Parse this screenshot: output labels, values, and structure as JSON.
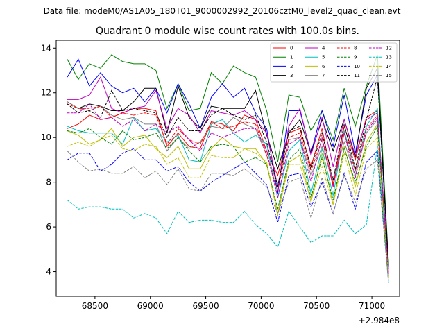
{
  "header": "Data file: modeM0/AS1A05_180T01_9000002992_20106cztM0_level2_quad_clean.evt",
  "chart_data": {
    "type": "line",
    "title": "Quadrant 0 module wise count rates with 100.0s bins.",
    "xlabel": "",
    "ylabel": "",
    "x_offset_label": "+2.984e8",
    "xlim": [
      68150,
      71250
    ],
    "ylim": [
      2.9,
      14.35
    ],
    "xticks": [
      68500,
      69000,
      69500,
      70000,
      70500,
      71000
    ],
    "yticks": [
      4,
      6,
      8,
      10,
      12,
      14
    ],
    "grid": false,
    "legend": {
      "placement": "top-right",
      "columns": 4
    },
    "x": [
      68250,
      68350,
      68450,
      68550,
      68650,
      68750,
      68850,
      68950,
      69050,
      69150,
      69250,
      69350,
      69450,
      69550,
      69650,
      69750,
      69850,
      69950,
      70050,
      70150,
      70250,
      70350,
      70450,
      70550,
      70650,
      70750,
      70850,
      70950,
      71050,
      71150
    ],
    "series": [
      {
        "name": "0",
        "color": "#ff0000",
        "dash": "solid",
        "values": [
          10.4,
          10.6,
          11.0,
          10.8,
          10.9,
          11.1,
          11.3,
          11.3,
          11.2,
          9.6,
          10.2,
          9.6,
          9.5,
          10.7,
          10.6,
          10.3,
          11.0,
          10.8,
          9.4,
          8.3,
          10.2,
          10.4,
          8.7,
          10.4,
          7.9,
          10.5,
          9.0,
          10.9,
          11.2,
          3.9
        ]
      },
      {
        "name": "1",
        "color": "#008000",
        "dash": "solid",
        "values": [
          13.5,
          12.6,
          13.3,
          13.1,
          13.7,
          13.4,
          13.3,
          13.3,
          13.0,
          11.3,
          12.4,
          11.2,
          11.3,
          12.9,
          12.4,
          13.2,
          12.9,
          12.7,
          11.2,
          8.9,
          11.9,
          11.8,
          10.3,
          11.2,
          9.9,
          12.2,
          10.5,
          12.3,
          13.7,
          4.4
        ]
      },
      {
        "name": "2",
        "color": "#0000ff",
        "dash": "solid",
        "values": [
          12.7,
          13.5,
          12.3,
          12.9,
          12.3,
          12.0,
          12.2,
          11.6,
          12.2,
          11.1,
          12.4,
          11.5,
          10.4,
          11.8,
          12.4,
          11.8,
          12.2,
          11.1,
          10.4,
          7.5,
          11.2,
          11.2,
          9.3,
          11.2,
          9.6,
          11.9,
          9.3,
          11.9,
          12.8,
          4.2
        ]
      },
      {
        "name": "3",
        "color": "#000000",
        "dash": "solid",
        "values": [
          11.6,
          11.3,
          11.5,
          11.4,
          11.2,
          11.2,
          11.6,
          12.2,
          12.2,
          10.2,
          12.3,
          10.9,
          10.4,
          11.4,
          11.3,
          11.3,
          11.3,
          12.1,
          10.1,
          8.6,
          10.2,
          10.8,
          9.3,
          10.8,
          9.4,
          10.8,
          9.1,
          12.2,
          13.1,
          4.3
        ]
      },
      {
        "name": "4",
        "color": "#c000c0",
        "dash": "solid",
        "values": [
          11.7,
          11.7,
          11.9,
          12.7,
          11.3,
          11.1,
          11.3,
          11.4,
          12.1,
          10.4,
          11.3,
          11.0,
          10.2,
          11.2,
          11.1,
          11.0,
          11.2,
          10.8,
          10.2,
          7.8,
          10.5,
          11.3,
          9.2,
          10.9,
          8.7,
          10.8,
          9.2,
          10.8,
          11.1,
          4.1
        ]
      },
      {
        "name": "5",
        "color": "#00bfbf",
        "dash": "solid",
        "values": [
          10.5,
          10.3,
          10.2,
          10.2,
          10.2,
          9.7,
          10.9,
          10.3,
          10.4,
          9.8,
          10.1,
          9.0,
          8.9,
          10.6,
          10.8,
          10.2,
          9.8,
          10.1,
          9.7,
          7.3,
          9.4,
          9.9,
          7.5,
          9.5,
          7.4,
          10.3,
          8.5,
          10.5,
          11.3,
          3.8
        ]
      },
      {
        "name": "6",
        "color": "#bfbf00",
        "dash": "solid",
        "values": [
          10.3,
          10.1,
          9.7,
          9.9,
          10.4,
          9.6,
          10.0,
          10.1,
          9.5,
          9.1,
          9.6,
          8.6,
          8.6,
          9.5,
          10.0,
          9.6,
          9.5,
          9.5,
          8.8,
          6.6,
          8.9,
          9.2,
          7.1,
          9.3,
          7.0,
          9.6,
          7.8,
          9.8,
          10.6,
          3.7
        ]
      },
      {
        "name": "7",
        "color": "#808080",
        "dash": "solid",
        "values": [
          11.6,
          11.3,
          11.2,
          11.4,
          11.0,
          10.8,
          10.9,
          10.6,
          10.6,
          9.4,
          10.0,
          9.5,
          9.8,
          10.5,
          10.4,
          10.9,
          10.6,
          10.4,
          9.2,
          7.9,
          9.9,
          10.0,
          8.3,
          9.6,
          8.1,
          9.8,
          8.3,
          10.2,
          10.8,
          3.8
        ]
      },
      {
        "name": "8",
        "color": "#ff0000",
        "dash": "dashed",
        "values": [
          11.5,
          11.3,
          11.3,
          11.4,
          10.9,
          11.1,
          11.0,
          11.1,
          11.0,
          9.7,
          10.4,
          9.9,
          9.7,
          10.7,
          10.4,
          10.5,
          10.7,
          10.6,
          9.2,
          7.6,
          10.0,
          10.2,
          8.5,
          9.9,
          7.8,
          10.2,
          8.5,
          10.4,
          11.0,
          3.9
        ]
      },
      {
        "name": "9",
        "color": "#008000",
        "dash": "dashed",
        "values": [
          10.3,
          10.2,
          10.4,
          10.0,
          9.7,
          10.3,
          9.9,
          10.0,
          10.2,
          9.5,
          10.0,
          9.4,
          8.9,
          9.6,
          9.7,
          9.6,
          8.9,
          9.1,
          8.8,
          6.8,
          9.0,
          9.5,
          7.3,
          9.1,
          7.2,
          9.5,
          8.0,
          9.6,
          10.5,
          3.7
        ]
      },
      {
        "name": "10",
        "color": "#0000ff",
        "dash": "dashed",
        "values": [
          9.0,
          9.3,
          9.3,
          8.5,
          8.8,
          9.3,
          9.5,
          9.0,
          9.0,
          8.5,
          8.7,
          8.0,
          7.6,
          8.0,
          8.3,
          8.6,
          8.9,
          8.4,
          7.9,
          6.2,
          8.3,
          8.4,
          6.9,
          8.0,
          6.6,
          8.4,
          6.8,
          8.9,
          9.4,
          3.6
        ]
      },
      {
        "name": "11",
        "color": "#000000",
        "dash": "dashed",
        "values": [
          11.5,
          11.1,
          11.2,
          10.9,
          12.1,
          11.2,
          11.3,
          11.2,
          11.1,
          10.0,
          10.9,
          10.3,
          10.3,
          11.0,
          11.3,
          11.0,
          10.8,
          11.0,
          9.8,
          7.8,
          10.3,
          10.5,
          8.6,
          10.2,
          8.1,
          10.6,
          8.6,
          10.8,
          12.7,
          4.2
        ]
      },
      {
        "name": "12",
        "color": "#c000c0",
        "dash": "dashed",
        "values": [
          11.1,
          11.1,
          11.5,
          10.8,
          10.9,
          10.5,
          10.8,
          10.3,
          10.6,
          10.2,
          10.5,
          9.9,
          9.4,
          10.2,
          10.0,
          10.2,
          10.4,
          10.4,
          9.4,
          7.3,
          9.7,
          10.0,
          8.0,
          10.0,
          7.8,
          10.2,
          8.2,
          10.3,
          10.9,
          3.9
        ]
      },
      {
        "name": "13",
        "color": "#00bfbf",
        "dash": "dashed",
        "values": [
          7.2,
          6.8,
          6.9,
          6.9,
          6.8,
          6.8,
          6.4,
          6.6,
          6.4,
          5.7,
          6.7,
          6.2,
          6.3,
          6.3,
          6.2,
          6.2,
          6.7,
          6.1,
          5.7,
          5.1,
          6.7,
          6.0,
          5.3,
          5.6,
          5.6,
          6.3,
          5.7,
          6.1,
          9.6,
          3.5
        ]
      },
      {
        "name": "14",
        "color": "#bfbf00",
        "dash": "dashed",
        "values": [
          9.6,
          9.8,
          9.6,
          9.9,
          10.1,
          9.5,
          9.4,
          9.7,
          9.6,
          8.8,
          9.1,
          8.2,
          8.2,
          9.2,
          9.1,
          9.1,
          9.5,
          9.3,
          8.9,
          6.5,
          8.8,
          8.8,
          7.2,
          8.7,
          7.0,
          9.3,
          7.4,
          9.5,
          10.0,
          3.7
        ]
      },
      {
        "name": "15",
        "color": "#808080",
        "dash": "dashed",
        "values": [
          9.4,
          8.9,
          8.5,
          8.6,
          8.4,
          8.4,
          8.7,
          8.2,
          8.5,
          7.9,
          8.6,
          7.7,
          7.6,
          8.4,
          8.4,
          8.3,
          8.6,
          8.2,
          7.8,
          6.6,
          8.0,
          8.2,
          6.4,
          8.2,
          6.6,
          8.3,
          7.1,
          8.6,
          9.0,
          3.5
        ]
      }
    ]
  }
}
